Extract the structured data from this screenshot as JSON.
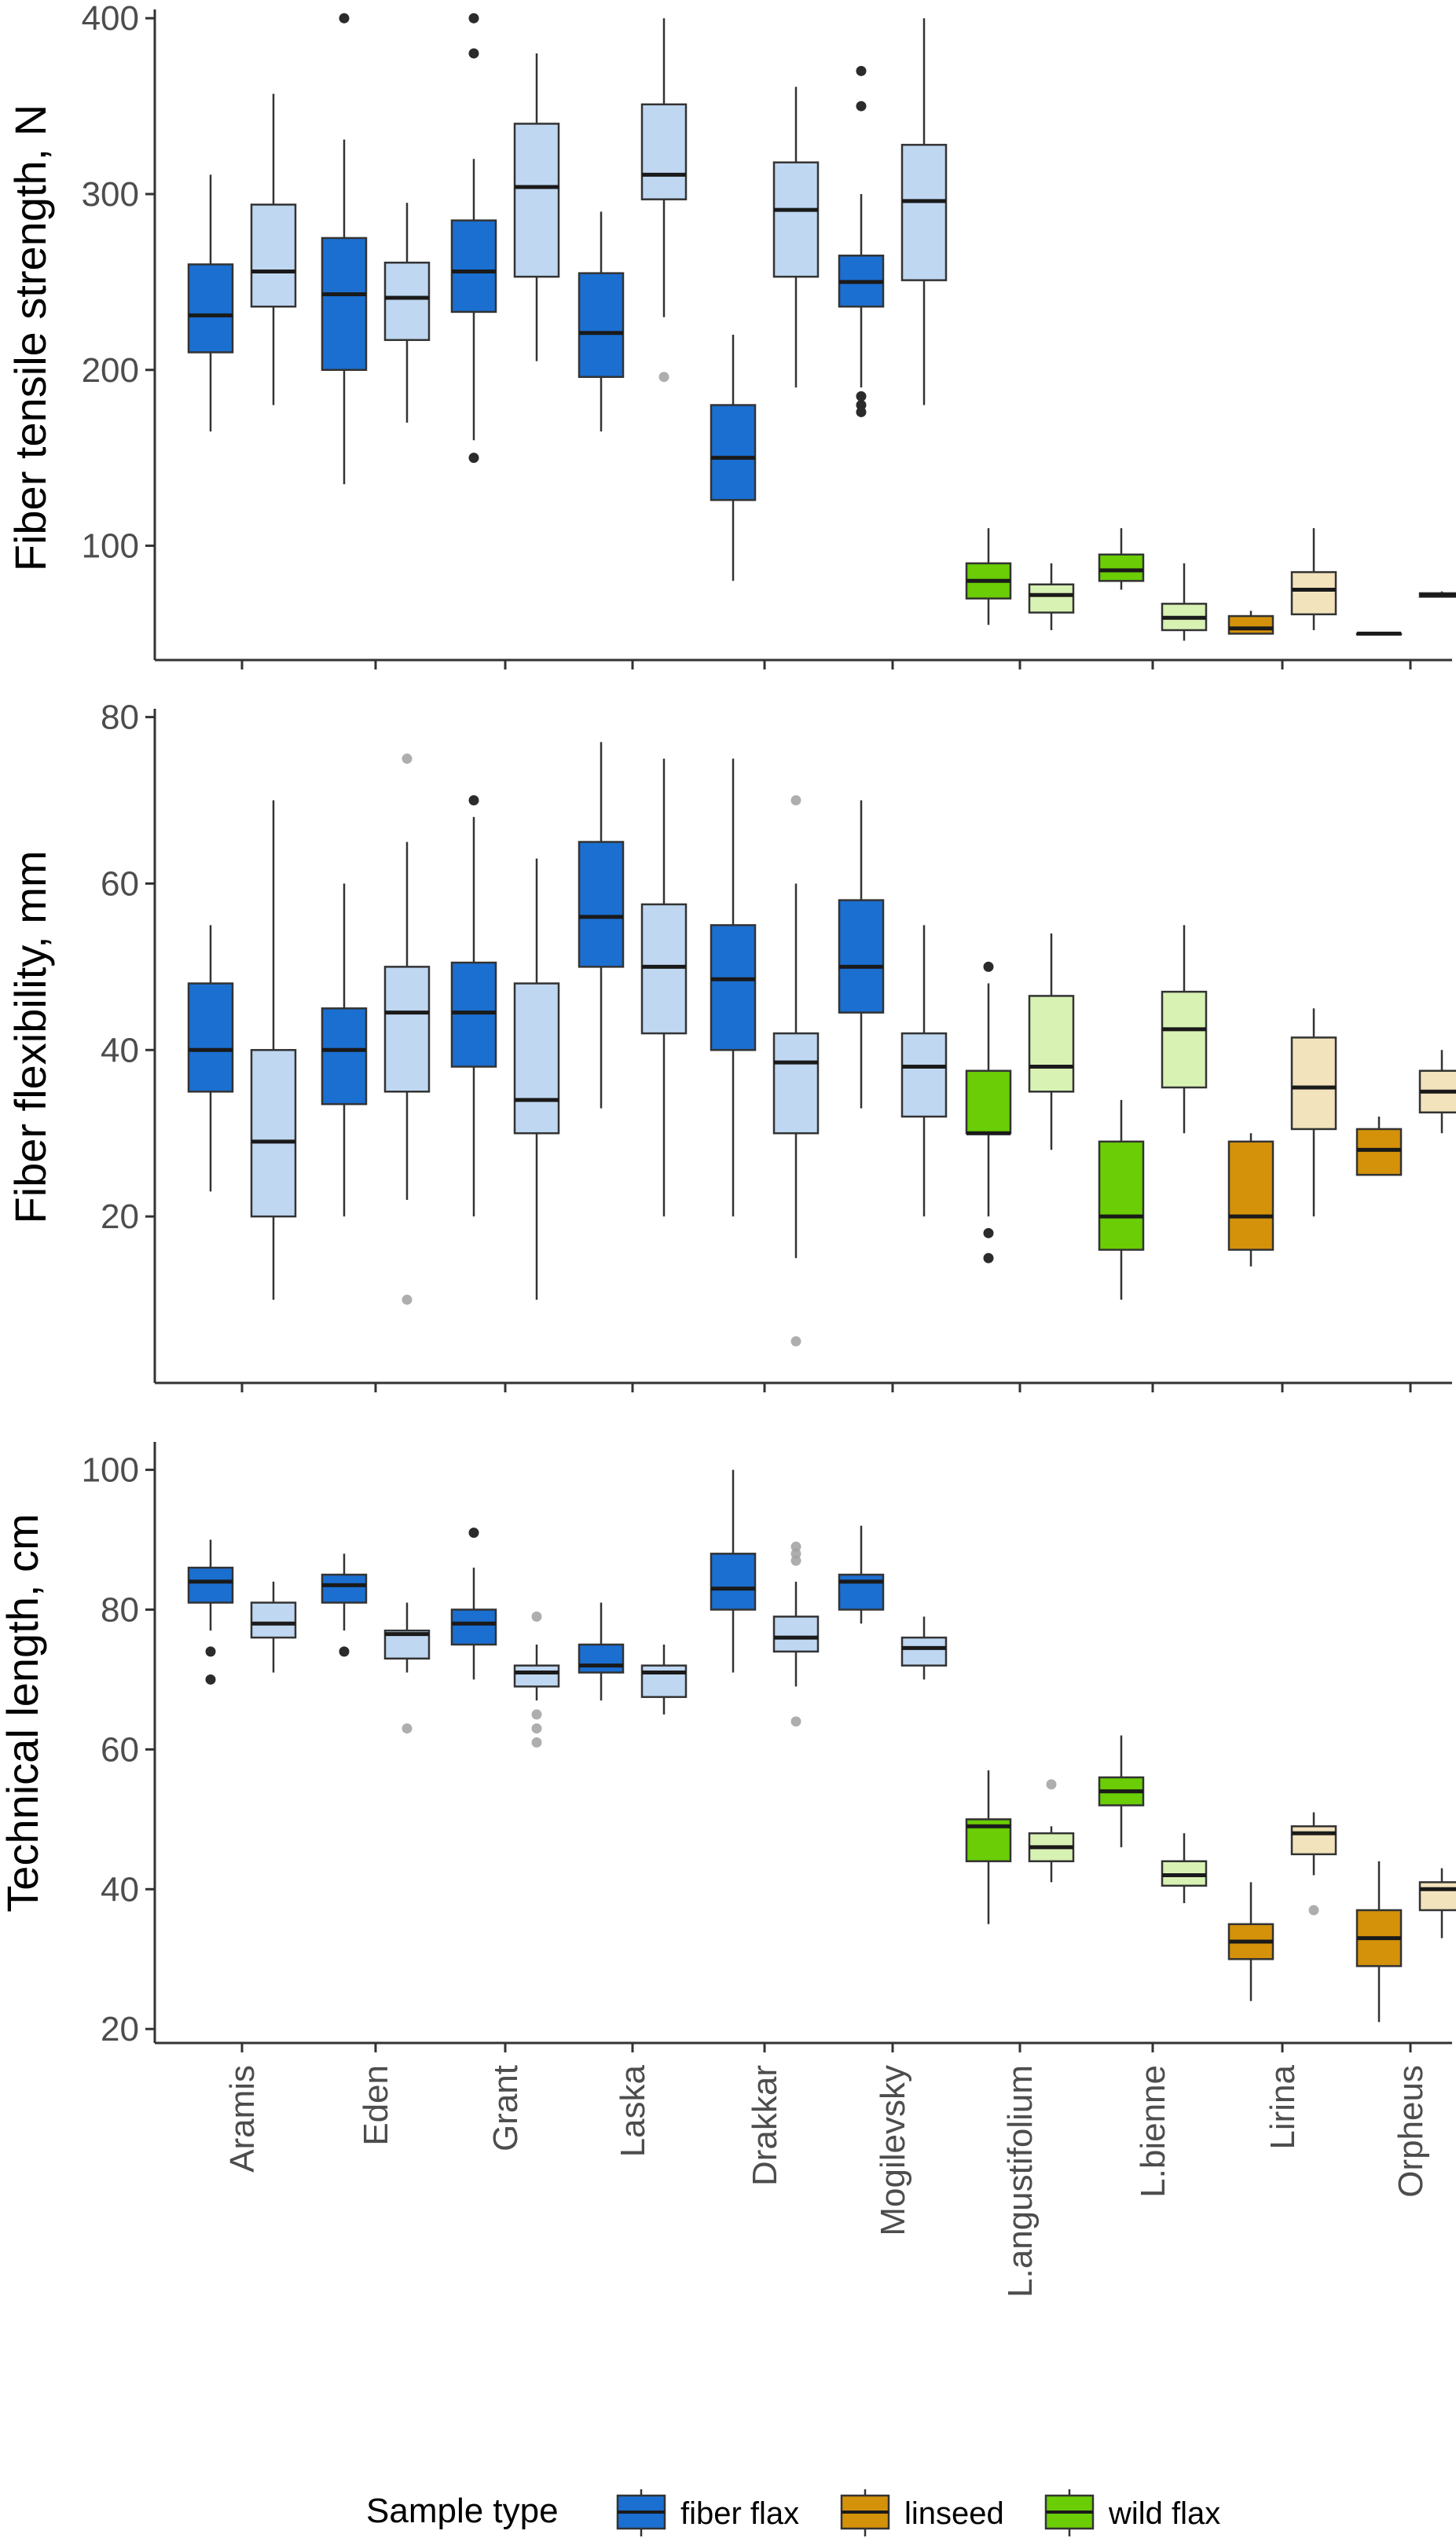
{
  "chart_data": {
    "type": "box",
    "categories": [
      "Aramis",
      "Eden",
      "Grant",
      "Laska",
      "Drakkar",
      "Mogilevsky",
      "L.angustifolium",
      "L.bienne",
      "Lirina",
      "Orpheus"
    ],
    "category_type": [
      "fiber flax",
      "fiber flax",
      "fiber flax",
      "fiber flax",
      "fiber flax",
      "fiber flax",
      "wild flax",
      "wild flax",
      "linseed",
      "linseed"
    ],
    "legend": {
      "title": "Sample type",
      "position": "bottom",
      "entries": [
        {
          "label": "fiber flax",
          "color": "#1b6fd1"
        },
        {
          "label": "linseed",
          "color": "#d4920b"
        },
        {
          "label": "wild flax",
          "color": "#6acd05"
        }
      ]
    },
    "shade_colors": {
      "fiber flax": "#bfd7f1",
      "wild flax": "#d8f2b4",
      "linseed": "#f3e3bd"
    },
    "panels": [
      {
        "ylabel": "Fiber tensile strength, N",
        "ylim": [
          35,
          405
        ],
        "yticks": [
          100,
          200,
          300,
          400
        ],
        "boxes": [
          [
            {
              "lw": 165,
              "q1": 210,
              "med": 231,
              "q3": 260,
              "uw": 311,
              "out": []
            },
            {
              "lw": 180,
              "q1": 236,
              "med": 256,
              "q3": 294,
              "uw": 357,
              "out": []
            }
          ],
          [
            {
              "lw": 135,
              "q1": 200,
              "med": 243,
              "q3": 275,
              "uw": 331,
              "out": [
                400
              ]
            },
            {
              "lw": 170,
              "q1": 217,
              "med": 241,
              "q3": 261,
              "uw": 295,
              "out": []
            }
          ],
          [
            {
              "lw": 160,
              "q1": 233,
              "med": 256,
              "q3": 285,
              "uw": 320,
              "out": [
                400,
                380,
                150
              ]
            },
            {
              "lw": 205,
              "q1": 253,
              "med": 304,
              "q3": 340,
              "uw": 380,
              "out": []
            }
          ],
          [
            {
              "lw": 165,
              "q1": 196,
              "med": 221,
              "q3": 255,
              "uw": 290,
              "out": []
            },
            {
              "lw": 230,
              "q1": 297,
              "med": 311,
              "q3": 351,
              "uw": 400,
              "out": [
                196
              ]
            }
          ],
          [
            {
              "lw": 80,
              "q1": 126,
              "med": 150,
              "q3": 180,
              "uw": 220,
              "out": []
            },
            {
              "lw": 190,
              "q1": 253,
              "med": 291,
              "q3": 318,
              "uw": 361,
              "out": []
            }
          ],
          [
            {
              "lw": 190,
              "q1": 236,
              "med": 250,
              "q3": 265,
              "uw": 300,
              "out": [
                370,
                350,
                185,
                180,
                176
              ]
            },
            {
              "lw": 180,
              "q1": 251,
              "med": 296,
              "q3": 328,
              "uw": 400,
              "out": []
            }
          ],
          [
            {
              "lw": 55,
              "q1": 70,
              "med": 80,
              "q3": 90,
              "uw": 110,
              "out": []
            },
            {
              "lw": 52,
              "q1": 62,
              "med": 72,
              "q3": 78,
              "uw": 90,
              "out": []
            }
          ],
          [
            {
              "lw": 75,
              "q1": 80,
              "med": 86,
              "q3": 95,
              "uw": 110,
              "out": []
            },
            {
              "lw": 46,
              "q1": 52,
              "med": 59,
              "q3": 67,
              "uw": 90,
              "out": []
            }
          ],
          [
            {
              "lw": 50,
              "q1": 50,
              "med": 53,
              "q3": 60,
              "uw": 63,
              "out": []
            },
            {
              "lw": 52,
              "q1": 61,
              "med": 75,
              "q3": 85,
              "uw": 110,
              "out": []
            }
          ],
          [
            {
              "lw": 50,
              "q1": 50,
              "med": 50,
              "q3": 50,
              "uw": 50,
              "out": []
            },
            {
              "lw": 71,
              "q1": 71,
              "med": 72,
              "q3": 73,
              "uw": 74,
              "out": []
            }
          ]
        ]
      },
      {
        "ylabel": "Fiber flexibility, mm",
        "ylim": [
          0,
          81
        ],
        "yticks": [
          20,
          40,
          60,
          80
        ],
        "boxes": [
          [
            {
              "lw": 23,
              "q1": 35,
              "med": 40,
              "q3": 48,
              "uw": 55,
              "out": []
            },
            {
              "lw": 10,
              "q1": 20,
              "med": 29,
              "q3": 40,
              "uw": 70,
              "out": []
            }
          ],
          [
            {
              "lw": 20,
              "q1": 33.5,
              "med": 40,
              "q3": 45,
              "uw": 60,
              "out": []
            },
            {
              "lw": 22,
              "q1": 35,
              "med": 44.5,
              "q3": 50,
              "uw": 65,
              "out": [
                75,
                10
              ]
            }
          ],
          [
            {
              "lw": 20,
              "q1": 38,
              "med": 44.5,
              "q3": 50.5,
              "uw": 68,
              "out": [
                70
              ]
            },
            {
              "lw": 10,
              "q1": 30,
              "med": 34,
              "q3": 48,
              "uw": 63,
              "out": []
            }
          ],
          [
            {
              "lw": 33,
              "q1": 50,
              "med": 56,
              "q3": 65,
              "uw": 77,
              "out": []
            },
            {
              "lw": 20,
              "q1": 42,
              "med": 50,
              "q3": 57.5,
              "uw": 75,
              "out": []
            }
          ],
          [
            {
              "lw": 20,
              "q1": 40,
              "med": 48.5,
              "q3": 55,
              "uw": 75,
              "out": []
            },
            {
              "lw": 15,
              "q1": 30,
              "med": 38.5,
              "q3": 42,
              "uw": 60,
              "out": [
                70,
                5
              ]
            }
          ],
          [
            {
              "lw": 33,
              "q1": 44.5,
              "med": 50,
              "q3": 58,
              "uw": 70,
              "out": []
            },
            {
              "lw": 20,
              "q1": 32,
              "med": 38,
              "q3": 42,
              "uw": 55,
              "out": []
            }
          ],
          [
            {
              "lw": 20,
              "q1": 30,
              "med": 30,
              "q3": 37.5,
              "uw": 48,
              "out": [
                50,
                18,
                15
              ]
            },
            {
              "lw": 28,
              "q1": 35,
              "med": 38,
              "q3": 46.5,
              "uw": 54,
              "out": []
            }
          ],
          [
            {
              "lw": 10,
              "q1": 16,
              "med": 20,
              "q3": 29,
              "uw": 34,
              "out": []
            },
            {
              "lw": 30,
              "q1": 35.5,
              "med": 42.5,
              "q3": 47,
              "uw": 55,
              "out": []
            }
          ],
          [
            {
              "lw": 14,
              "q1": 16,
              "med": 20,
              "q3": 29,
              "uw": 30,
              "out": []
            },
            {
              "lw": 20,
              "q1": 30.5,
              "med": 35.5,
              "q3": 41.5,
              "uw": 45,
              "out": []
            }
          ],
          [
            {
              "lw": 25,
              "q1": 25,
              "med": 28,
              "q3": 30.5,
              "uw": 32,
              "out": []
            },
            {
              "lw": 30,
              "q1": 32.5,
              "med": 35,
              "q3": 37.5,
              "uw": 40,
              "out": []
            }
          ]
        ]
      },
      {
        "ylabel": "Technical length, cm",
        "ylim": [
          18,
          104
        ],
        "yticks": [
          20,
          40,
          60,
          80,
          100
        ],
        "boxes": [
          [
            {
              "lw": 77,
              "q1": 81,
              "med": 84,
              "q3": 86,
              "uw": 90,
              "out": [
                74,
                70
              ]
            },
            {
              "lw": 71,
              "q1": 76,
              "med": 78,
              "q3": 81,
              "uw": 84,
              "out": []
            }
          ],
          [
            {
              "lw": 77,
              "q1": 81,
              "med": 83.5,
              "q3": 85,
              "uw": 88,
              "out": [
                74
              ]
            },
            {
              "lw": 71,
              "q1": 73,
              "med": 76.5,
              "q3": 77,
              "uw": 81,
              "out": [
                63
              ]
            }
          ],
          [
            {
              "lw": 70,
              "q1": 75,
              "med": 78,
              "q3": 80,
              "uw": 86,
              "out": [
                91
              ]
            },
            {
              "lw": 67,
              "q1": 69,
              "med": 71,
              "q3": 72,
              "uw": 75,
              "out": [
                79,
                65,
                63,
                61
              ]
            }
          ],
          [
            {
              "lw": 67,
              "q1": 71,
              "med": 72,
              "q3": 75,
              "uw": 81,
              "out": []
            },
            {
              "lw": 65,
              "q1": 67.5,
              "med": 71,
              "q3": 72,
              "uw": 75,
              "out": []
            }
          ],
          [
            {
              "lw": 71,
              "q1": 80,
              "med": 83,
              "q3": 88,
              "uw": 100,
              "out": []
            },
            {
              "lw": 69,
              "q1": 74,
              "med": 76,
              "q3": 79,
              "uw": 84,
              "out": [
                89,
                88,
                87,
                64
              ]
            }
          ],
          [
            {
              "lw": 78,
              "q1": 80,
              "med": 84,
              "q3": 85,
              "uw": 92,
              "out": []
            },
            {
              "lw": 70,
              "q1": 72,
              "med": 74.5,
              "q3": 76,
              "uw": 79,
              "out": []
            }
          ],
          [
            {
              "lw": 35,
              "q1": 44,
              "med": 49,
              "q3": 50,
              "uw": 57,
              "out": []
            },
            {
              "lw": 41,
              "q1": 44,
              "med": 46,
              "q3": 48,
              "uw": 49,
              "out": [
                55
              ]
            }
          ],
          [
            {
              "lw": 46,
              "q1": 52,
              "med": 54,
              "q3": 56,
              "uw": 62,
              "out": []
            },
            {
              "lw": 38,
              "q1": 40.5,
              "med": 42,
              "q3": 44,
              "uw": 48,
              "out": []
            }
          ],
          [
            {
              "lw": 24,
              "q1": 30,
              "med": 32.5,
              "q3": 35,
              "uw": 41,
              "out": []
            },
            {
              "lw": 42,
              "q1": 45,
              "med": 48,
              "q3": 49,
              "uw": 51,
              "out": [
                37
              ]
            }
          ],
          [
            {
              "lw": 21,
              "q1": 29,
              "med": 33,
              "q3": 37,
              "uw": 44,
              "out": []
            },
            {
              "lw": 33,
              "q1": 37,
              "med": 40,
              "q3": 41,
              "uw": 43,
              "out": []
            }
          ]
        ]
      }
    ]
  }
}
